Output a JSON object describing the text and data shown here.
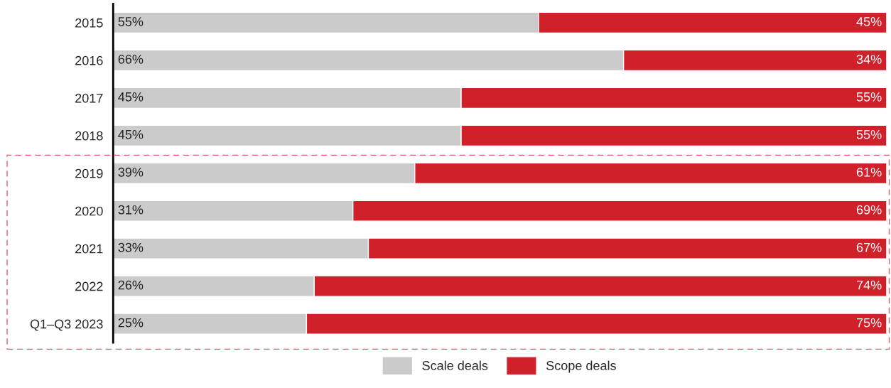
{
  "chart_data": {
    "type": "bar",
    "orientation": "horizontal",
    "stacked": true,
    "categories": [
      "2015",
      "2016",
      "2017",
      "2018",
      "2019",
      "2020",
      "2021",
      "2022",
      "Q1–Q3 2023"
    ],
    "series": [
      {
        "name": "Scale deals",
        "color": "#cbcbcb",
        "values": [
          55,
          66,
          45,
          45,
          39,
          31,
          33,
          26,
          25
        ],
        "value_labels": [
          "55%",
          "66%",
          "45%",
          "45%",
          "39%",
          "31%",
          "33%",
          "26%",
          "25%"
        ]
      },
      {
        "name": "Scope deals",
        "color": "#d0202a",
        "values": [
          45,
          34,
          55,
          55,
          61,
          69,
          67,
          74,
          75
        ],
        "value_labels": [
          "45%",
          "34%",
          "55%",
          "55%",
          "61%",
          "69%",
          "67%",
          "74%",
          "75%"
        ]
      }
    ],
    "tick_labels": "y",
    "legend": "bottom"
  }
}
